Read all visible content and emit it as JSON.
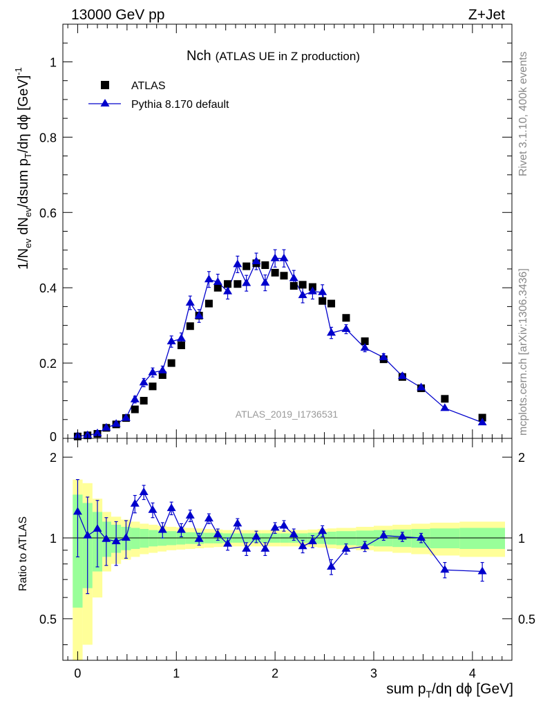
{
  "header": {
    "energy": "13000 GeV pp",
    "process": "Z+Jet"
  },
  "side_labels": {
    "rivet": "Rivet 3.1.10,  400k events",
    "mcplots": "mcplots.cern.ch [arXiv:1306.3436]"
  },
  "chart_data": {
    "type": "scatter",
    "title_main": "Nch",
    "title_sub": "(ATLAS UE in Z production)",
    "analysis_label": "ATLAS_2019_I1736531",
    "xlabel": "sum p_T/dη dϕ [GeV]",
    "ylabel": "1/N_ev dN_ev/dsum p_T/dη dϕ [GeV]^-1",
    "ratio_ylabel": "Ratio to ATLAS",
    "xlim": [
      -0.15,
      4.4
    ],
    "ylim": [
      0,
      1.1
    ],
    "ratio_ylim": [
      0.35,
      2.35
    ],
    "x_ticks": [
      0,
      1,
      2,
      3,
      4
    ],
    "y_ticks": [
      0.2,
      0.4,
      0.6,
      0.8,
      1
    ],
    "y_tick_labels": [
      "0.2",
      "0.4",
      "0.6",
      "0.8",
      "1"
    ],
    "y_zero_label": "0",
    "ratio_ticks": [
      0.5,
      1,
      2
    ],
    "ratio_tick_labels": [
      "0.5",
      "1",
      "2"
    ],
    "legend": [
      "ATLAS",
      "Pythia 8.170 default"
    ],
    "x": [
      0.0,
      0.1,
      0.2,
      0.29,
      0.39,
      0.49,
      0.58,
      0.67,
      0.76,
      0.86,
      0.95,
      1.05,
      1.14,
      1.23,
      1.33,
      1.42,
      1.52,
      1.62,
      1.71,
      1.81,
      1.9,
      2.0,
      2.09,
      2.19,
      2.28,
      2.38,
      2.48,
      2.57,
      2.72,
      2.91,
      3.1,
      3.29,
      3.48,
      3.72,
      4.1
    ],
    "bin_edges": [
      -0.05,
      0.05,
      0.15,
      0.25,
      0.34,
      0.44,
      0.54,
      0.63,
      0.72,
      0.81,
      0.9,
      1.0,
      1.09,
      1.19,
      1.28,
      1.38,
      1.47,
      1.57,
      1.67,
      1.76,
      1.86,
      1.95,
      2.05,
      2.14,
      2.24,
      2.33,
      2.43,
      2.53,
      2.62,
      2.82,
      3.0,
      3.19,
      3.38,
      3.57,
      3.87,
      4.33
    ],
    "series": [
      {
        "name": "ATLAS",
        "marker": "square",
        "color": "#000000",
        "values": [
          0.005,
          0.008,
          0.012,
          0.028,
          0.037,
          0.054,
          0.077,
          0.1,
          0.138,
          0.168,
          0.2,
          0.247,
          0.298,
          0.326,
          0.358,
          0.4,
          0.41,
          0.41,
          0.457,
          0.465,
          0.46,
          0.44,
          0.432,
          0.405,
          0.408,
          0.402,
          0.365,
          0.358,
          0.32,
          0.258,
          0.21,
          0.163,
          0.133,
          0.105,
          0.055
        ]
      },
      {
        "name": "Pythia 8.170 default",
        "marker": "triangle",
        "color": "#0000cc",
        "values": [
          0.006,
          0.008,
          0.013,
          0.028,
          0.038,
          0.054,
          0.103,
          0.148,
          0.175,
          0.18,
          0.257,
          0.265,
          0.36,
          0.325,
          0.422,
          0.415,
          0.39,
          0.462,
          0.412,
          0.47,
          0.413,
          0.478,
          0.478,
          0.425,
          0.38,
          0.39,
          0.388,
          0.28,
          0.29,
          0.24,
          0.215,
          0.165,
          0.135,
          0.08,
          0.042
        ],
        "errors": [
          0.002,
          0.002,
          0.003,
          0.004,
          0.005,
          0.006,
          0.009,
          0.011,
          0.012,
          0.012,
          0.015,
          0.015,
          0.018,
          0.017,
          0.021,
          0.021,
          0.02,
          0.022,
          0.021,
          0.022,
          0.021,
          0.023,
          0.023,
          0.021,
          0.02,
          0.02,
          0.02,
          0.015,
          0.012,
          0.01,
          0.01,
          0.008,
          0.006,
          0.004,
          0.003
        ]
      }
    ],
    "ratio_values": [
      1.25,
      1.02,
      1.08,
      0.99,
      0.97,
      1.0,
      1.34,
      1.48,
      1.27,
      1.07,
      1.29,
      1.07,
      1.21,
      0.99,
      1.18,
      1.03,
      0.95,
      1.13,
      0.91,
      1.01,
      0.91,
      1.09,
      1.11,
      1.03,
      0.93,
      0.97,
      1.06,
      0.78,
      0.91,
      0.93,
      1.02,
      1.01,
      1.0,
      0.76,
      0.75
    ],
    "ratio_errors": [
      0.4,
      0.4,
      0.3,
      0.2,
      0.18,
      0.16,
      0.1,
      0.09,
      0.08,
      0.07,
      0.07,
      0.06,
      0.06,
      0.05,
      0.05,
      0.05,
      0.05,
      0.05,
      0.05,
      0.05,
      0.05,
      0.05,
      0.05,
      0.05,
      0.05,
      0.05,
      0.05,
      0.05,
      0.04,
      0.04,
      0.04,
      0.04,
      0.04,
      0.05,
      0.06
    ],
    "band_inner_halfwidth": [
      0.45,
      0.35,
      0.25,
      0.15,
      0.12,
      0.1,
      0.09,
      0.08,
      0.07,
      0.065,
      0.06,
      0.055,
      0.05,
      0.05,
      0.045,
      0.045,
      0.04,
      0.04,
      0.04,
      0.04,
      0.04,
      0.04,
      0.04,
      0.04,
      0.04,
      0.045,
      0.05,
      0.055,
      0.06,
      0.065,
      0.07,
      0.075,
      0.08,
      0.085,
      0.09
    ],
    "band_outer_halfwidth": [
      0.65,
      0.6,
      0.4,
      0.25,
      0.2,
      0.17,
      0.15,
      0.13,
      0.12,
      0.11,
      0.1,
      0.095,
      0.09,
      0.085,
      0.08,
      0.075,
      0.07,
      0.07,
      0.07,
      0.07,
      0.07,
      0.07,
      0.07,
      0.07,
      0.07,
      0.075,
      0.08,
      0.085,
      0.09,
      0.1,
      0.11,
      0.12,
      0.13,
      0.14,
      0.15
    ],
    "band_inner_color": "#99ff99",
    "band_outer_color": "#ffff99"
  }
}
